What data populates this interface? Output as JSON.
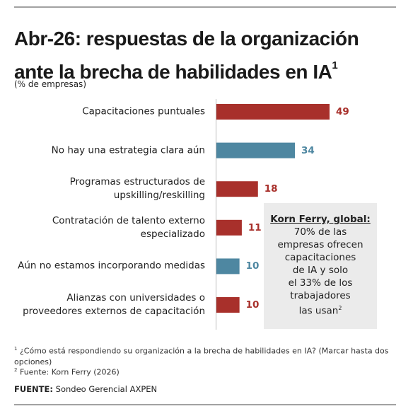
{
  "chart_data": {
    "type": "bar",
    "orientation": "horizontal",
    "title": "Abr-26: respuestas de la organización ante la brecha de habilidades en IA",
    "title_superscript": "1",
    "subtitle": "(% de empresas)",
    "categories": [
      "Capacitaciones puntuales",
      "No hay una estrategia clara aún",
      "Programas estructurados de\nupskilling/reskilling",
      "Contratación de talento externo\nespecializado",
      "Aún no estamos incorporando medidas",
      "Alianzas con universidades o\nproveedores externos de capacitación"
    ],
    "values": [
      49,
      34,
      18,
      11,
      10,
      10
    ],
    "colors": [
      "#a8302b",
      "#4e87a1",
      "#a8302b",
      "#a8302b",
      "#4e87a1",
      "#a8302b"
    ],
    "annotation": {
      "heading": "Korn Ferry, global:",
      "text": "70% de las\nempresas ofrecen\ncapacitaciones\nde IA y solo\nel 33% de los\ntrabajadores\nlas usan",
      "superscript": "2"
    },
    "footnotes": [
      {
        "mark": "1",
        "text": "¿Cómo está respondiendo su organización a la brecha de habilidades en IA? (Marcar hasta dos opciones)"
      },
      {
        "mark": "2",
        "text": "Fuente: Korn Ferry (2026)"
      }
    ],
    "source": {
      "label": "FUENTE:",
      "text": "Sondeo Gerencial AXPEN"
    }
  }
}
